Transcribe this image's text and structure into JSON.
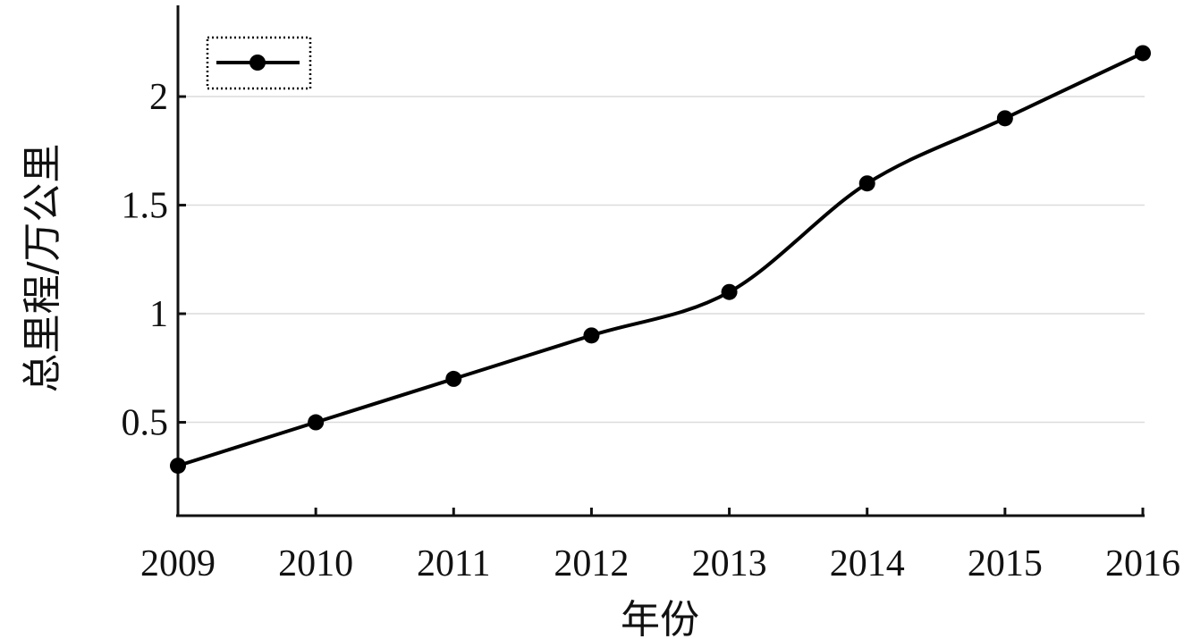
{
  "chart_data": {
    "type": "line",
    "xlabel": "年份",
    "ylabel": "总里程/万公里",
    "categories": [
      "2009",
      "2010",
      "2011",
      "2012",
      "2013",
      "2014",
      "2015",
      "2016"
    ],
    "series": [
      {
        "values": [
          0.3,
          0.5,
          0.7,
          0.9,
          1.1,
          1.6,
          1.9,
          2.2
        ],
        "color": "#000000",
        "smooth": true,
        "marker": "circle"
      }
    ],
    "yticks": [
      0.5,
      1,
      1.5,
      2
    ],
    "ytick_labels": [
      "0.5",
      "1",
      "1.5",
      "2"
    ],
    "ylim": [
      0.07,
      2.42
    ],
    "grid": "horizontal",
    "legend": {
      "position": "top-left",
      "entries": [
        ""
      ]
    }
  }
}
